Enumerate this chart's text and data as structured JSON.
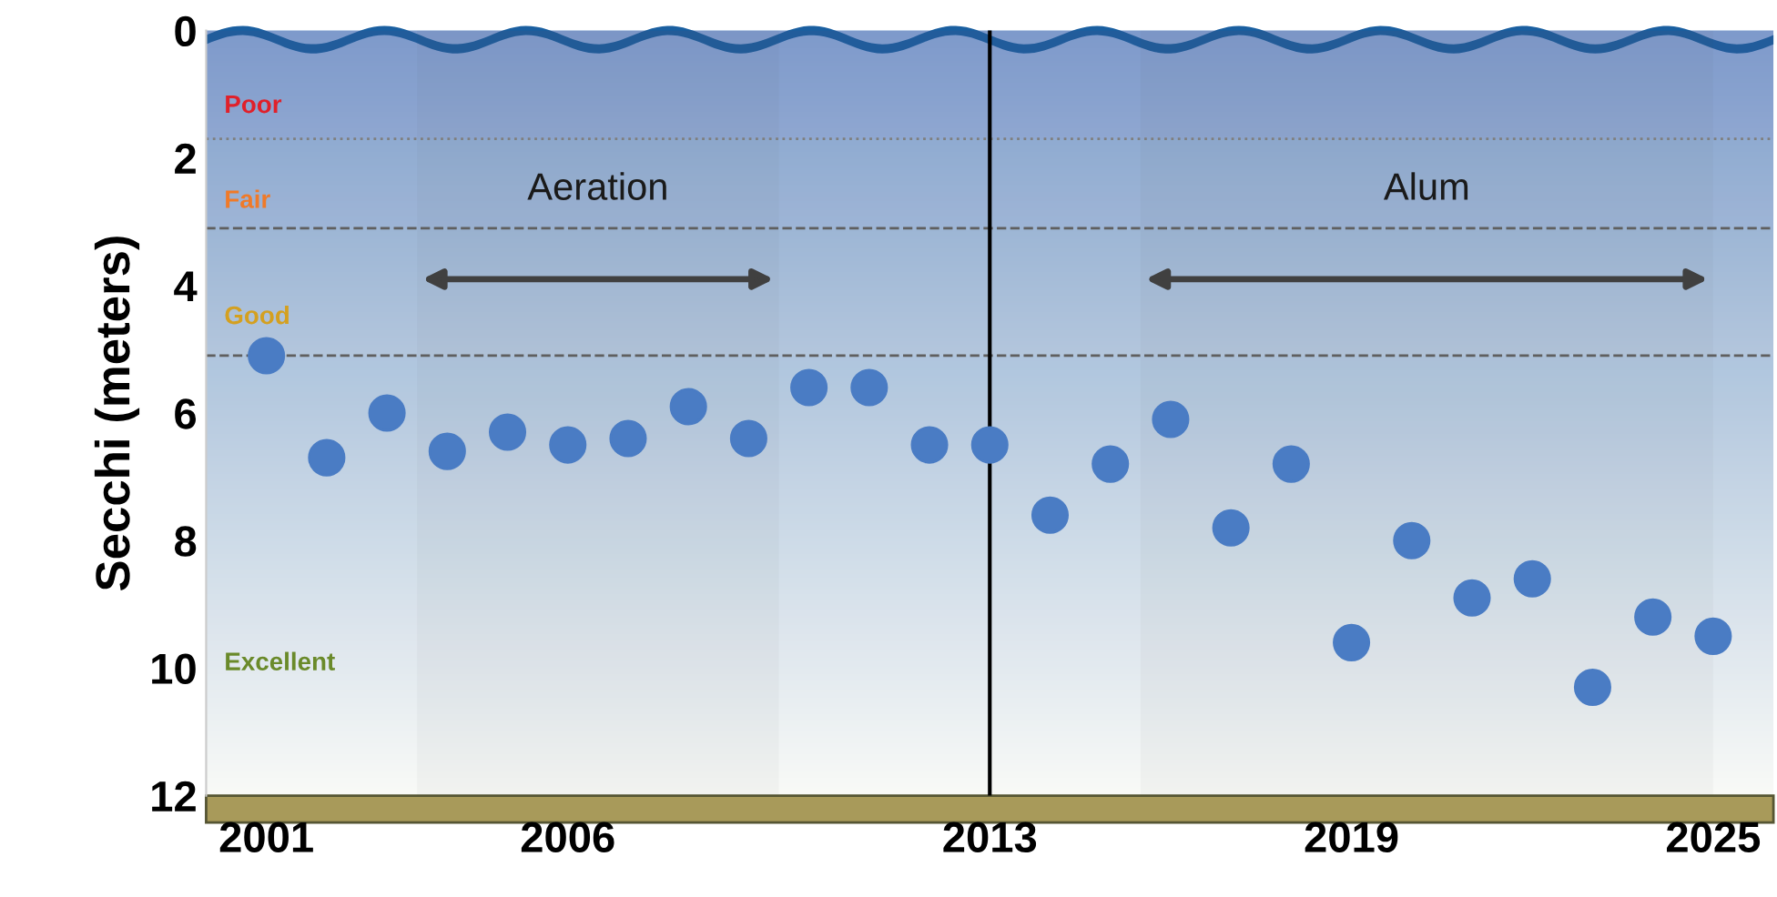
{
  "chart_data": {
    "type": "scatter",
    "ylabel": "Secchi (meters)",
    "x": [
      2001,
      2002,
      2003,
      2004,
      2005,
      2006,
      2007,
      2008,
      2009,
      2010,
      2011,
      2012,
      2013,
      2014,
      2015,
      2016,
      2017,
      2018,
      2019,
      2020,
      2021,
      2022,
      2023,
      2024,
      2025
    ],
    "series": [
      {
        "color": "#4a7cc4",
        "values": [
          5.1,
          6.7,
          6.0,
          6.6,
          6.3,
          6.5,
          6.4,
          5.9,
          6.4,
          5.6,
          5.6,
          6.5,
          6.5,
          7.6,
          6.8,
          6.1,
          7.8,
          6.8,
          9.6,
          8.0,
          8.9,
          8.6,
          10.3,
          9.2,
          9.5
        ]
      }
    ],
    "marker": "circle",
    "xlim": [
      2000,
      2026
    ],
    "xticks": [
      2001,
      2006,
      2013,
      2019,
      2025
    ],
    "ylim": [
      12,
      0
    ],
    "yticks": [
      0,
      2,
      4,
      6,
      8,
      10,
      12
    ],
    "grid": false,
    "legend": false,
    "ref_lines": [
      {
        "axis": "y",
        "value": 1.7,
        "color": "#7f7f7f",
        "line_style": "dotted"
      },
      {
        "axis": "y",
        "value": 3.1,
        "color": "#5f5f5f",
        "line_style": "dashed"
      },
      {
        "axis": "y",
        "value": 5.1,
        "color": "#5f5f5f",
        "line_style": "dashed"
      },
      {
        "axis": "x",
        "value": 2013,
        "color": "#000000",
        "line_style": "solid"
      }
    ],
    "bands": [
      {
        "axis": "y",
        "from": 0,
        "to": 1.7,
        "label": "Poor",
        "color": "#e0202a"
      },
      {
        "axis": "y",
        "from": 1.7,
        "to": 3.1,
        "label": "Fair",
        "color": "#f07a28"
      },
      {
        "axis": "y",
        "from": 3.1,
        "to": 5.1,
        "label": "Good",
        "color": "#d4a020"
      },
      {
        "axis": "y",
        "from": 5.1,
        "to": 12,
        "label": "Excellent",
        "color": "#6a8a2a"
      },
      {
        "axis": "x",
        "from": 2003.5,
        "to": 2009.5,
        "label": "Aeration",
        "color": "#404040"
      },
      {
        "axis": "x",
        "from": 2015.5,
        "to": 2025.0,
        "label": "Alum",
        "color": "#404040"
      }
    ]
  }
}
